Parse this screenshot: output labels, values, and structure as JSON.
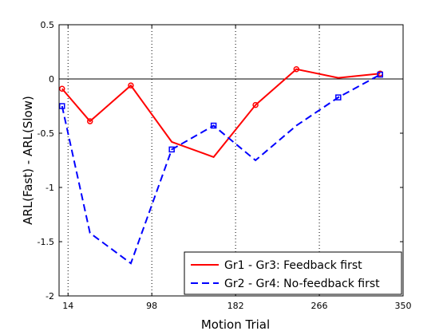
{
  "chart_data": {
    "type": "line",
    "title": "",
    "xlabel": "Motion Trial",
    "ylabel": "ARL(Fast) - ARL(Slow)",
    "xlim": [
      5,
      350
    ],
    "ylim": [
      -2,
      0.5
    ],
    "xticks": [
      14,
      98,
      182,
      266,
      350
    ],
    "yticks": [
      -2,
      -1.5,
      -1,
      -0.5,
      0,
      0.5
    ],
    "xtick_labels": [
      "14",
      "98",
      "182",
      "266",
      "350"
    ],
    "ytick_labels": [
      "-2",
      "-1.5",
      "-1",
      "-0.5",
      "0",
      "0.5"
    ],
    "grid": "vertical dotted lines at x ticks",
    "reference_line": 0,
    "legend_position": "lower-right",
    "series": [
      {
        "name": "Gr1 - Gr3: Feedback first",
        "color": "#ff0000",
        "linestyle": "solid",
        "marker": "circle",
        "x": [
          8,
          36,
          77,
          118,
          160,
          202,
          243,
          285,
          327
        ],
        "y": [
          -0.09,
          -0.39,
          -0.06,
          -0.58,
          -0.72,
          -0.24,
          0.09,
          0.01,
          0.05
        ],
        "marker_indices": [
          0,
          1,
          2,
          5,
          6,
          8
        ]
      },
      {
        "name": "Gr2 - Gr4: No-feedback first",
        "color": "#0000ff",
        "linestyle": "dashed",
        "marker": "square",
        "x": [
          8,
          36,
          77,
          118,
          160,
          202,
          243,
          285,
          327
        ],
        "y": [
          -0.25,
          -1.42,
          -1.7,
          -0.65,
          -0.43,
          -0.75,
          -0.43,
          -0.17,
          0.04
        ],
        "marker_indices": [
          0,
          3,
          4,
          7,
          8
        ]
      }
    ]
  }
}
